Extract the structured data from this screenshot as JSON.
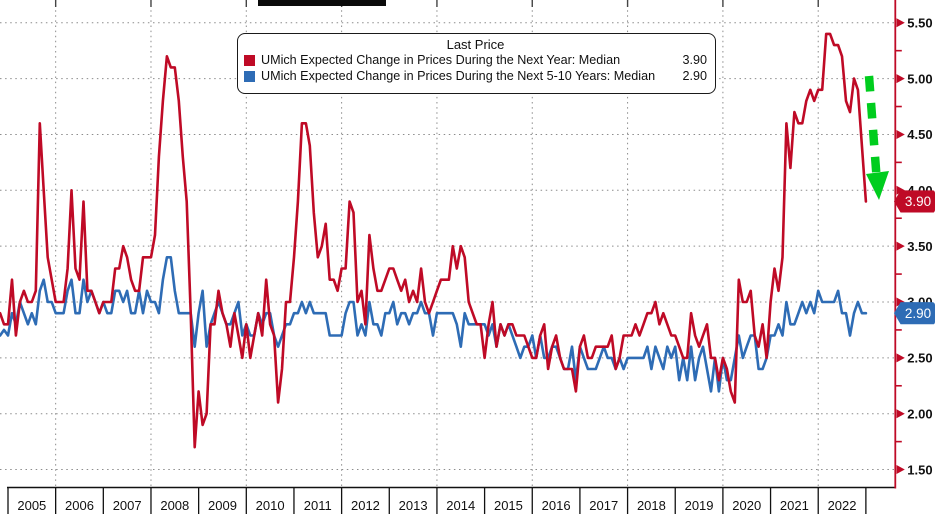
{
  "legend": {
    "title": "Last Price",
    "series": [
      {
        "label": "UMich Expected Change in Prices During the Next Year: Median",
        "value": "3.90",
        "color": "#bf0a26"
      },
      {
        "label": "UMich Expected Change in Prices During the Next 5-10 Years: Median",
        "value": "2.90",
        "color": "#2e6cb5"
      }
    ]
  },
  "badges": [
    {
      "text": "3.90",
      "value": 3.9,
      "color": "#bf0a26"
    },
    {
      "text": "2.90",
      "value": 2.9,
      "color": "#2e6cb5"
    }
  ],
  "y_axis": {
    "tick_labels": [
      "5.50",
      "5.00",
      "4.50",
      "4.00",
      "3.50",
      "3.00",
      "2.50",
      "2.00",
      "1.50"
    ],
    "minor_ticks": [
      5.25,
      4.75,
      4.25,
      3.75,
      3.25,
      2.75,
      2.25,
      1.75
    ],
    "axis_color": "#bf0a26",
    "label_color": "#111111"
  },
  "x_axis": {
    "years": [
      "2005",
      "2006",
      "2007",
      "2008",
      "2009",
      "2010",
      "2011",
      "2012",
      "2013",
      "2014",
      "2015",
      "2016",
      "2017",
      "2018",
      "2019",
      "2020",
      "2021",
      "2022"
    ],
    "label_color": "#111111"
  },
  "annotation": {
    "type": "dashed-down-arrow",
    "color": "#00cd1e"
  },
  "chart_data": {
    "type": "line",
    "title": "Last Price",
    "frequency": "monthly",
    "x_start": "2004-11",
    "x_end": "2023-01",
    "ylim": [
      1.5,
      5.5
    ],
    "ytick_step": 0.5,
    "grid": "dotted",
    "grid_color": "#8c8c8c",
    "x_gridline_years": [
      2006,
      2008,
      2010,
      2012,
      2014,
      2016,
      2018,
      2020,
      2022
    ],
    "legend_position": "top-center",
    "series": [
      {
        "name": "UMich Expected Change in Prices During the Next Year: Median",
        "color": "#bf0a26",
        "last_value": 3.9,
        "values": [
          2.9,
          2.8,
          2.8,
          3.2,
          2.7,
          3.0,
          3.1,
          3.0,
          3.0,
          3.1,
          4.6,
          4.0,
          3.4,
          3.2,
          3.0,
          3.0,
          3.0,
          3.3,
          4.0,
          3.3,
          3.2,
          3.9,
          3.1,
          3.1,
          3.0,
          2.9,
          3.0,
          3.0,
          3.0,
          3.3,
          3.3,
          3.5,
          3.4,
          3.2,
          3.1,
          3.1,
          3.4,
          3.4,
          3.4,
          3.6,
          4.3,
          4.8,
          5.2,
          5.1,
          5.1,
          4.8,
          4.3,
          3.9,
          2.9,
          1.7,
          2.2,
          1.9,
          2.0,
          2.8,
          2.8,
          3.1,
          2.9,
          2.8,
          2.6,
          2.9,
          2.7,
          2.5,
          2.8,
          2.5,
          2.7,
          2.9,
          2.7,
          3.2,
          2.8,
          2.7,
          2.1,
          2.4,
          3.0,
          3.0,
          3.4,
          3.9,
          4.6,
          4.6,
          4.4,
          3.8,
          3.4,
          3.5,
          3.7,
          3.2,
          3.2,
          3.1,
          3.3,
          3.3,
          3.9,
          3.8,
          3.0,
          3.1,
          2.8,
          3.6,
          3.3,
          3.1,
          3.1,
          3.2,
          3.3,
          3.3,
          3.2,
          3.1,
          3.2,
          3.0,
          3.1,
          3.0,
          3.3,
          3.0,
          2.9,
          3.0,
          3.1,
          3.2,
          3.2,
          3.2,
          3.5,
          3.3,
          3.5,
          3.4,
          3.0,
          2.9,
          2.8,
          2.8,
          2.5,
          2.8,
          3.0,
          2.6,
          2.8,
          2.7,
          2.8,
          2.8,
          2.7,
          2.7,
          2.7,
          2.6,
          2.5,
          2.5,
          2.7,
          2.8,
          2.4,
          2.6,
          2.7,
          2.5,
          2.4,
          2.4,
          2.4,
          2.2,
          2.6,
          2.7,
          2.5,
          2.5,
          2.6,
          2.6,
          2.6,
          2.6,
          2.7,
          2.4,
          2.5,
          2.7,
          2.7,
          2.7,
          2.8,
          2.7,
          2.8,
          2.9,
          2.9,
          3.0,
          2.8,
          2.9,
          2.8,
          2.7,
          2.7,
          2.6,
          2.5,
          2.5,
          2.9,
          2.7,
          2.6,
          2.7,
          2.8,
          2.5,
          2.5,
          2.3,
          2.5,
          2.4,
          2.2,
          2.1,
          3.2,
          3.0,
          3.0,
          3.1,
          2.7,
          2.6,
          2.8,
          2.5,
          3.0,
          3.3,
          3.1,
          3.4,
          4.6,
          4.2,
          4.7,
          4.6,
          4.6,
          4.8,
          4.9,
          4.8,
          4.9,
          4.9,
          5.4,
          5.4,
          5.3,
          5.3,
          5.2,
          4.8,
          4.7,
          5.0,
          4.9,
          4.4,
          3.9
        ]
      },
      {
        "name": "UMich Expected Change in Prices During the Next 5-10 Years: Median",
        "color": "#2e6cb5",
        "last_value": 2.9,
        "values": [
          2.7,
          2.75,
          2.7,
          2.9,
          2.8,
          3.0,
          2.9,
          2.8,
          2.9,
          2.8,
          3.1,
          3.2,
          3.0,
          3.0,
          2.9,
          2.9,
          2.9,
          3.1,
          3.2,
          2.9,
          2.9,
          3.2,
          3.0,
          3.1,
          3.0,
          2.9,
          3.0,
          2.9,
          2.9,
          3.1,
          3.1,
          3.0,
          3.1,
          2.9,
          2.9,
          3.1,
          2.9,
          3.1,
          3.0,
          3.0,
          2.9,
          3.2,
          3.4,
          3.4,
          3.1,
          2.9,
          2.9,
          2.9,
          2.9,
          2.6,
          2.9,
          3.1,
          2.6,
          2.8,
          2.9,
          3.0,
          2.9,
          2.8,
          2.8,
          2.9,
          3.0,
          2.7,
          2.8,
          2.7,
          2.7,
          2.9,
          2.8,
          2.9,
          2.9,
          2.7,
          2.6,
          2.7,
          2.8,
          2.8,
          2.9,
          2.9,
          3.0,
          2.9,
          3.0,
          2.9,
          2.9,
          2.9,
          2.9,
          2.7,
          2.7,
          2.7,
          2.7,
          2.9,
          3.0,
          3.0,
          2.7,
          2.8,
          2.7,
          3.0,
          2.8,
          2.8,
          2.7,
          2.9,
          2.9,
          3.0,
          2.8,
          2.9,
          2.9,
          2.8,
          2.9,
          2.9,
          3.0,
          2.9,
          2.9,
          2.7,
          2.9,
          2.9,
          2.9,
          2.9,
          2.9,
          2.8,
          2.6,
          2.9,
          2.8,
          2.8,
          2.8,
          2.8,
          2.8,
          2.7,
          2.8,
          2.6,
          2.8,
          2.7,
          2.8,
          2.7,
          2.6,
          2.5,
          2.6,
          2.6,
          2.7,
          2.5,
          2.7,
          2.5,
          2.5,
          2.6,
          2.6,
          2.5,
          2.4,
          2.4,
          2.6,
          2.3,
          2.6,
          2.5,
          2.4,
          2.4,
          2.4,
          2.5,
          2.6,
          2.5,
          2.5,
          2.4,
          2.5,
          2.4,
          2.5,
          2.5,
          2.5,
          2.5,
          2.5,
          2.6,
          2.4,
          2.6,
          2.5,
          2.4,
          2.6,
          2.5,
          2.6,
          2.3,
          2.5,
          2.3,
          2.6,
          2.3,
          2.5,
          2.6,
          2.4,
          2.2,
          2.5,
          2.2,
          2.5,
          2.3,
          2.3,
          2.5,
          2.7,
          2.5,
          2.6,
          2.7,
          2.7,
          2.4,
          2.4,
          2.5,
          2.7,
          2.7,
          2.8,
          2.7,
          3.0,
          2.8,
          2.8,
          2.9,
          3.0,
          2.9,
          3.0,
          2.9,
          3.1,
          3.0,
          3.0,
          3.0,
          3.0,
          3.1,
          2.9,
          2.9,
          2.7,
          2.9,
          3.0,
          2.9,
          2.9
        ]
      }
    ]
  }
}
